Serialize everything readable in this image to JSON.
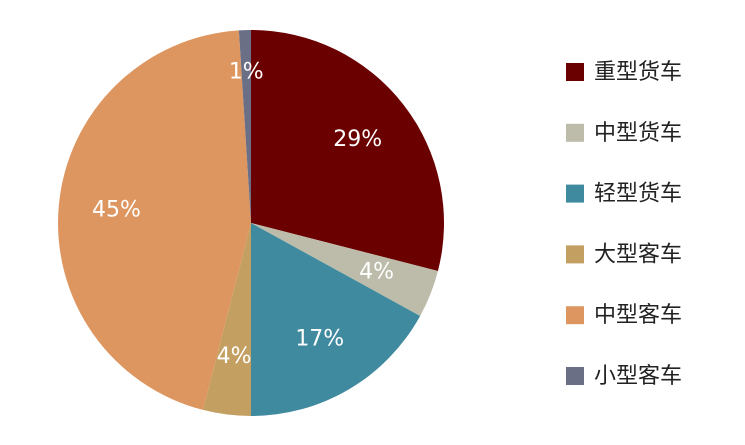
{
  "chart_data": {
    "type": "pie",
    "categories": [
      "重型货车",
      "中型货车",
      "轻型货车",
      "大型客车",
      "中型客车",
      "小型客车"
    ],
    "values": [
      29,
      4,
      17,
      4,
      45,
      1
    ],
    "value_labels": [
      "29%",
      "4%",
      "17%",
      "4%",
      "45%",
      "1%"
    ],
    "colors": [
      "#6b0000",
      "#bdbcaa",
      "#3f8a9e",
      "#c39f62",
      "#de9660",
      "#6b6f86"
    ],
    "legend": "right"
  }
}
